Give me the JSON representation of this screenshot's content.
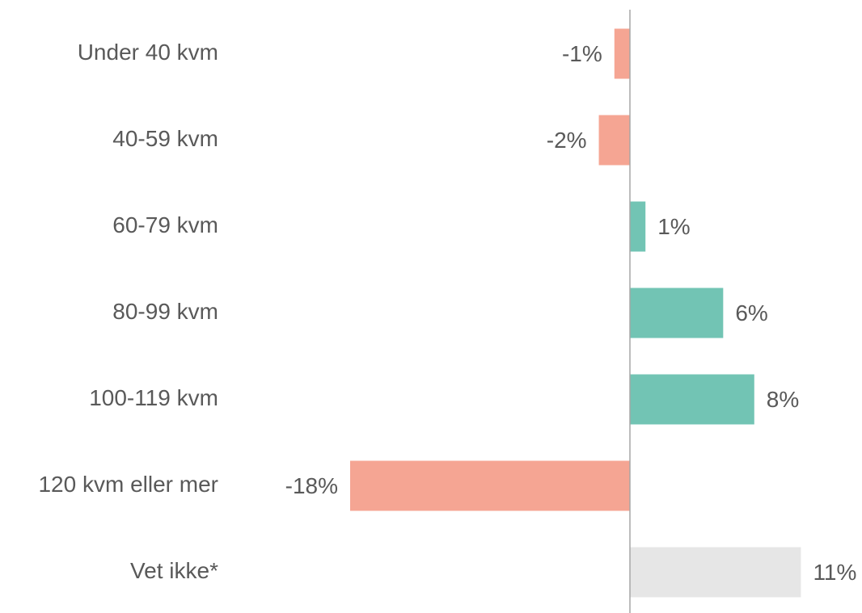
{
  "chart_data": {
    "type": "bar",
    "orientation": "horizontal",
    "categories": [
      "Under 40 kvm",
      "40-59 kvm",
      "60-79 kvm",
      "80-99 kvm",
      "100-119 kvm",
      "120 kvm eller mer",
      "Vet ikke*"
    ],
    "values": [
      -1,
      -2,
      1,
      6,
      8,
      -18,
      11
    ],
    "value_labels": [
      "-1%",
      "-2%",
      "1%",
      "6%",
      "8%",
      "-18%",
      "11%"
    ],
    "colors": [
      "#f5a593",
      "#f5a593",
      "#72c4b4",
      "#72c4b4",
      "#72c4b4",
      "#f5a593",
      "#e6e6e6"
    ]
  }
}
